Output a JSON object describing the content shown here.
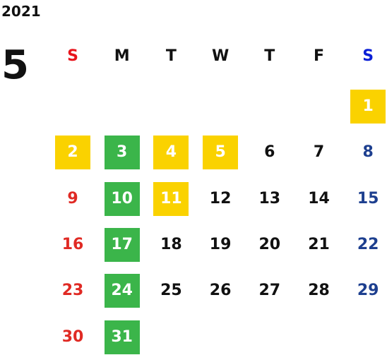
{
  "calendar": {
    "year": "2021",
    "month": "5",
    "weekdays": [
      "S",
      "M",
      "T",
      "W",
      "T",
      "F",
      "S"
    ],
    "colors": {
      "weekday_header": [
        "#e8141c",
        "#111111",
        "#111111",
        "#111111",
        "#111111",
        "#111111",
        "#0a1fd6"
      ],
      "day_text": [
        "#e02a24",
        "#111111",
        "#111111",
        "#111111",
        "#111111",
        "#111111",
        "#1d3f8f"
      ],
      "highlight_text": "#ffffff",
      "fills": {
        "yellow": "#fad200",
        "green": "#3bb54a"
      }
    },
    "weeks": [
      [
        null,
        null,
        null,
        null,
        null,
        null,
        {
          "text": "1",
          "fill": "yellow"
        }
      ],
      [
        {
          "text": "2",
          "fill": "yellow"
        },
        {
          "text": "3",
          "fill": "green"
        },
        {
          "text": "4",
          "fill": "yellow"
        },
        {
          "text": "5",
          "fill": "yellow"
        },
        {
          "text": "6"
        },
        {
          "text": "7"
        },
        {
          "text": "8"
        }
      ],
      [
        {
          "text": "9"
        },
        {
          "text": "10",
          "fill": "green"
        },
        {
          "text": "11",
          "fill": "yellow"
        },
        {
          "text": "12"
        },
        {
          "text": "13"
        },
        {
          "text": "14"
        },
        {
          "text": "15"
        }
      ],
      [
        {
          "text": "16"
        },
        {
          "text": "17",
          "fill": "green"
        },
        {
          "text": "18"
        },
        {
          "text": "19"
        },
        {
          "text": "20"
        },
        {
          "text": "21"
        },
        {
          "text": "22"
        }
      ],
      [
        {
          "text": "23"
        },
        {
          "text": "24",
          "fill": "green"
        },
        {
          "text": "25"
        },
        {
          "text": "26"
        },
        {
          "text": "27"
        },
        {
          "text": "28"
        },
        {
          "text": "29"
        }
      ],
      [
        {
          "text": "30"
        },
        {
          "text": "31",
          "fill": "green"
        },
        null,
        null,
        null,
        null,
        null
      ]
    ]
  }
}
